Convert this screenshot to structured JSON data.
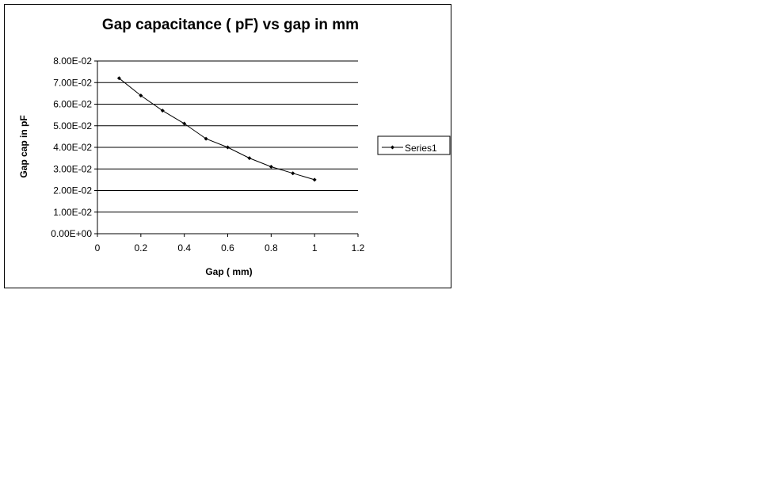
{
  "chart_data": {
    "type": "line",
    "title": "Gap capacitance ( pF) vs gap in mm",
    "xlabel": "Gap ( mm)",
    "ylabel": "Gap cap in pF",
    "xlim": [
      0,
      1.2
    ],
    "ylim": [
      0,
      0.08
    ],
    "x_ticks": [
      "0",
      "0.2",
      "0.4",
      "0.6",
      "0.8",
      "1",
      "1.2"
    ],
    "y_ticks": [
      "0.00E+00",
      "1.00E-02",
      "2.00E-02",
      "3.00E-02",
      "4.00E-02",
      "5.00E-02",
      "6.00E-02",
      "7.00E-02",
      "8.00E-02"
    ],
    "grid": "horizontal",
    "legend_position": "right",
    "series": [
      {
        "name": "Series1",
        "color": "#000000",
        "x": [
          0.1,
          0.2,
          0.3,
          0.4,
          0.5,
          0.6,
          0.7,
          0.8,
          0.9,
          1.0
        ],
        "y": [
          0.072,
          0.064,
          0.057,
          0.051,
          0.044,
          0.04,
          0.035,
          0.031,
          0.028,
          0.025
        ]
      }
    ]
  }
}
